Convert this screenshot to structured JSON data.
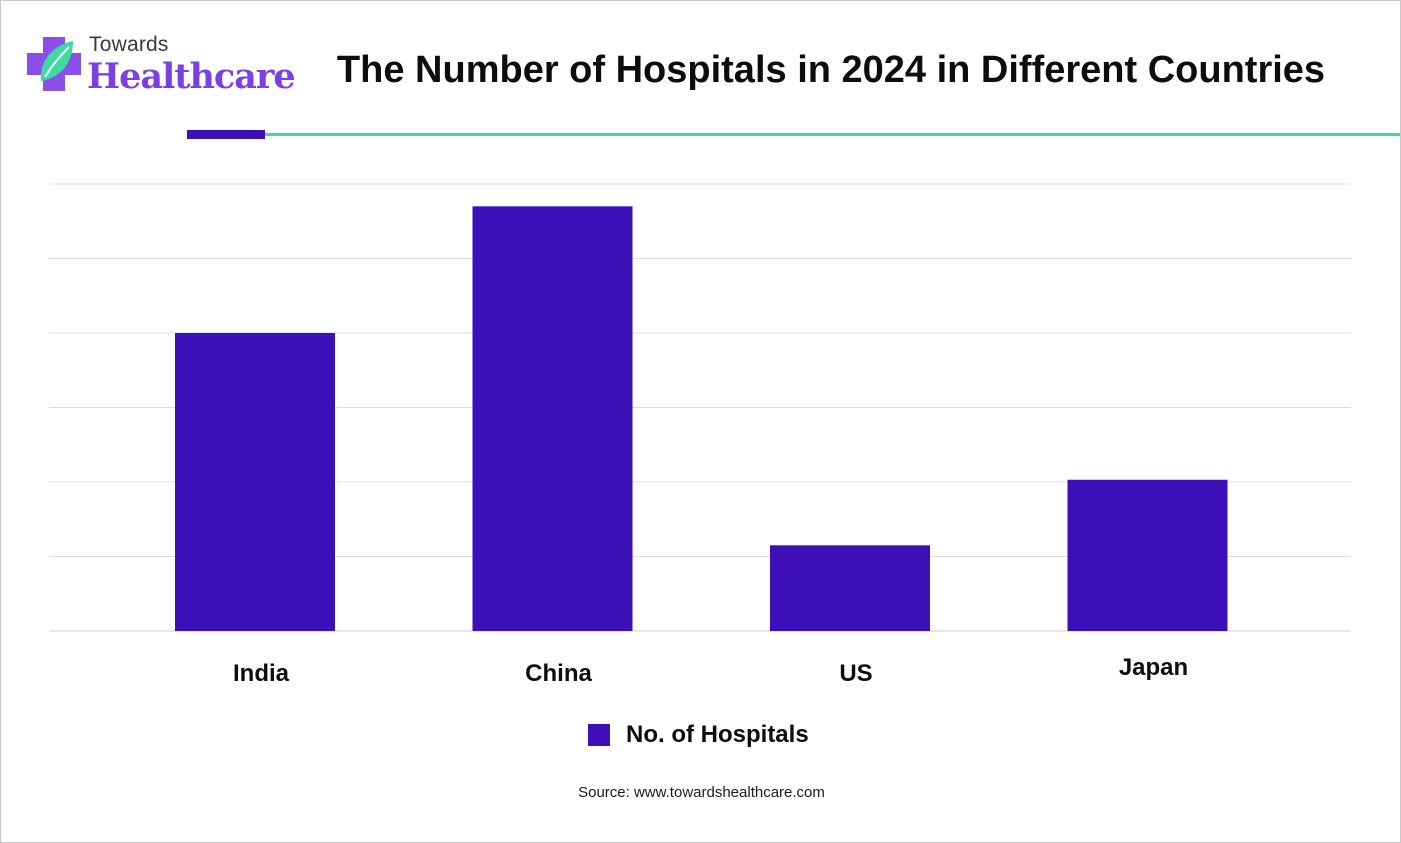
{
  "brand": {
    "top_text": "Towards",
    "main_text": "Healthcare",
    "accent_color": "#7b3fe4",
    "icon": "medical-cross-leaf-icon"
  },
  "header": {
    "title": "The Number of Hospitals in 2024 in Different Countries",
    "rule_color": "#3ddba0",
    "rule_accent_color": "#3c0fb9"
  },
  "chart_data": {
    "type": "bar",
    "title": "The Number of Hospitals in 2024 in Different Countries",
    "categories": [
      "India",
      "China",
      "US",
      "Japan"
    ],
    "series": [
      {
        "name": "No. of Hospitals",
        "color": "#3c0fb9",
        "values": [
          40000,
          57000,
          11500,
          20300
        ]
      }
    ],
    "xlabel": "",
    "ylabel": "",
    "ylim": [
      0,
      60000
    ],
    "y_tick_step": 10000,
    "y_tick_labels_visible": false,
    "grid": true,
    "legend": "bottom-center"
  },
  "legend": {
    "label": "No. of Hospitals",
    "color": "#3c0fb9"
  },
  "footer": {
    "source": "Source: www.towardshealthcare.com"
  }
}
